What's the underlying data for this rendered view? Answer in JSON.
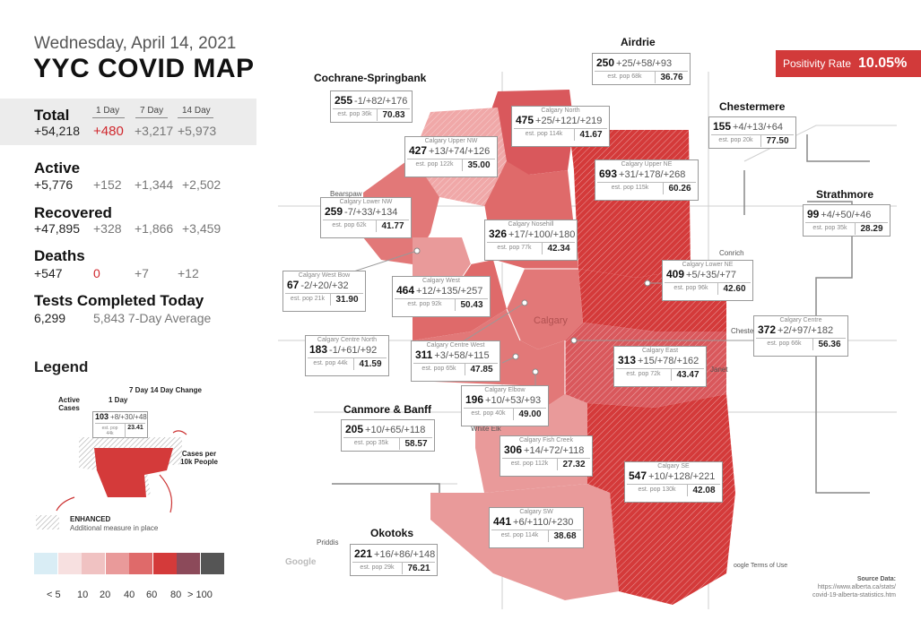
{
  "header": {
    "date": "Wednesday, April 14, 2021",
    "title": "YYC COVID MAP"
  },
  "stats": {
    "cols": [
      "1 Day",
      "7 Day",
      "14 Day"
    ],
    "total": {
      "label": "Total",
      "value": "+54,218",
      "d1": "+480",
      "d7": "+3,217",
      "d14": "+5,973"
    },
    "active": {
      "label": "Active",
      "value": "+5,776",
      "d1": "+152",
      "d7": "+1,344",
      "d14": "+2,502"
    },
    "recovered": {
      "label": "Recovered",
      "value": "+47,895",
      "d1": "+328",
      "d7": "+1,866",
      "d14": "+3,459"
    },
    "deaths": {
      "label": "Deaths",
      "value": "+547",
      "d1": "0",
      "d7": "+7",
      "d14": "+12"
    },
    "tests": {
      "label": "Tests Completed Today",
      "value": "6,299",
      "avg": "5,843 7-Day Average"
    }
  },
  "legend": {
    "title": "Legend",
    "active_cases": "Active Cases",
    "one_day": "1 Day",
    "seven_fourteen": "7 Day 14 Day Change",
    "example": {
      "active": "103",
      "chg": "+8/+30/+48",
      "pop": "est. pop 44k",
      "rate": "23.41"
    },
    "cases_per": "Cases per 10k People",
    "enhanced": "ENHANCED",
    "enhanced_sub": "Additional measure in place",
    "scale_labels": [
      "< 5",
      "10",
      "20",
      "40",
      "60",
      "80",
      "> 100"
    ],
    "scale_colors": [
      "#d9edf5",
      "#f7e0e0",
      "#f0c2c2",
      "#e99a9a",
      "#df6a6a",
      "#d43a3a",
      "#8c4a5a",
      "#555555"
    ]
  },
  "positivity": {
    "label": "Positivity Rate",
    "value": "10.05%"
  },
  "regions": {
    "cochrane": {
      "title": "Cochrane-Springbank",
      "active": "255",
      "chg": "-1/+82/+176",
      "pop": "est. pop 36k",
      "rate": "70.83"
    },
    "airdrie": {
      "title": "Airdrie",
      "active": "250",
      "chg": "+25/+58/+93",
      "pop": "est. pop 68k",
      "rate": "36.76"
    },
    "chestermere": {
      "title": "Chestermere",
      "active": "155",
      "chg": "+4/+13/+64",
      "pop": "est. pop 20k",
      "rate": "77.50"
    },
    "strathmore": {
      "title": "Strathmore",
      "active": "99",
      "chg": "+4/+50/+46",
      "pop": "est. pop 35k",
      "rate": "28.29"
    },
    "canmore": {
      "title": "Canmore & Banff",
      "active": "205",
      "chg": "+10/+65/+118",
      "pop": "est. pop 35k",
      "rate": "58.57"
    },
    "okotoks": {
      "title": "Okotoks",
      "active": "221",
      "chg": "+16/+86/+148",
      "pop": "est. pop 29k",
      "rate": "76.21"
    },
    "north": {
      "name": "Calgary North",
      "active": "475",
      "chg": "+25/+121/+219",
      "pop": "est. pop 114k",
      "rate": "41.67"
    },
    "upper_nw": {
      "name": "Calgary Upper NW",
      "active": "427",
      "chg": "+13/+74/+126",
      "pop": "est. pop 122k",
      "rate": "35.00"
    },
    "upper_ne": {
      "name": "Calgary Upper NE",
      "active": "693",
      "chg": "+31/+178/+268",
      "pop": "est. pop 115k",
      "rate": "60.26"
    },
    "lower_nw": {
      "name": "Calgary Lower NW",
      "active": "259",
      "chg": "-7/+33/+134",
      "pop": "est. pop 62k",
      "rate": "41.77"
    },
    "nosehill": {
      "name": "Calgary Nosehill",
      "active": "326",
      "chg": "+17/+100/+180",
      "pop": "est. pop 77k",
      "rate": "42.34"
    },
    "west_bow": {
      "name": "Calgary West Bow",
      "active": "67",
      "chg": "-2/+20/+32",
      "pop": "est. pop 21k",
      "rate": "31.90"
    },
    "west": {
      "name": "Calgary West",
      "active": "464",
      "chg": "+12/+135/+257",
      "pop": "est. pop 92k",
      "rate": "50.43"
    },
    "lower_ne": {
      "name": "Calgary Lower NE",
      "active": "409",
      "chg": "+5/+35/+77",
      "pop": "est. pop 96k",
      "rate": "42.60"
    },
    "centre": {
      "name": "Calgary Centre",
      "active": "372",
      "chg": "+2/+97/+182",
      "pop": "est. pop 66k",
      "rate": "56.36"
    },
    "centre_north": {
      "name": "Calgary Centre North",
      "active": "183",
      "chg": "-1/+61/+92",
      "pop": "est. pop 44k",
      "rate": "41.59"
    },
    "centre_west": {
      "name": "Calgary Centre West",
      "active": "311",
      "chg": "+3/+58/+115",
      "pop": "est. pop 65k",
      "rate": "47.85"
    },
    "east": {
      "name": "Calgary East",
      "active": "313",
      "chg": "+15/+78/+162",
      "pop": "est. pop 72k",
      "rate": "43.47"
    },
    "elbow": {
      "name": "Calgary Elbow",
      "active": "196",
      "chg": "+10/+53/+93",
      "pop": "est. pop 40k",
      "rate": "49.00"
    },
    "fish_creek": {
      "name": "Calgary Fish Creek",
      "active": "306",
      "chg": "+14/+72/+118",
      "pop": "est. pop 112k",
      "rate": "27.32"
    },
    "se": {
      "name": "Calgary SE",
      "active": "547",
      "chg": "+10/+128/+221",
      "pop": "est. pop 130k",
      "rate": "42.08"
    },
    "sw": {
      "name": "Calgary SW",
      "active": "441",
      "chg": "+6/+110/+230",
      "pop": "est. pop 114k",
      "rate": "38.68"
    }
  },
  "map_labels": {
    "calgary": "Calgary",
    "conrich": "Conrich",
    "chestermere": "Chester",
    "janet": "Janet",
    "white_elk": "White Elk",
    "bearspaw": "Bearspaw",
    "priddis": "Priddis",
    "google": "Google",
    "terms": "oogle   Terms of Use"
  },
  "source": {
    "line1": "Source Data:",
    "line2": "https://www.alberta.ca/stats/",
    "line3": "covid-19-alberta-statistics.htm"
  }
}
